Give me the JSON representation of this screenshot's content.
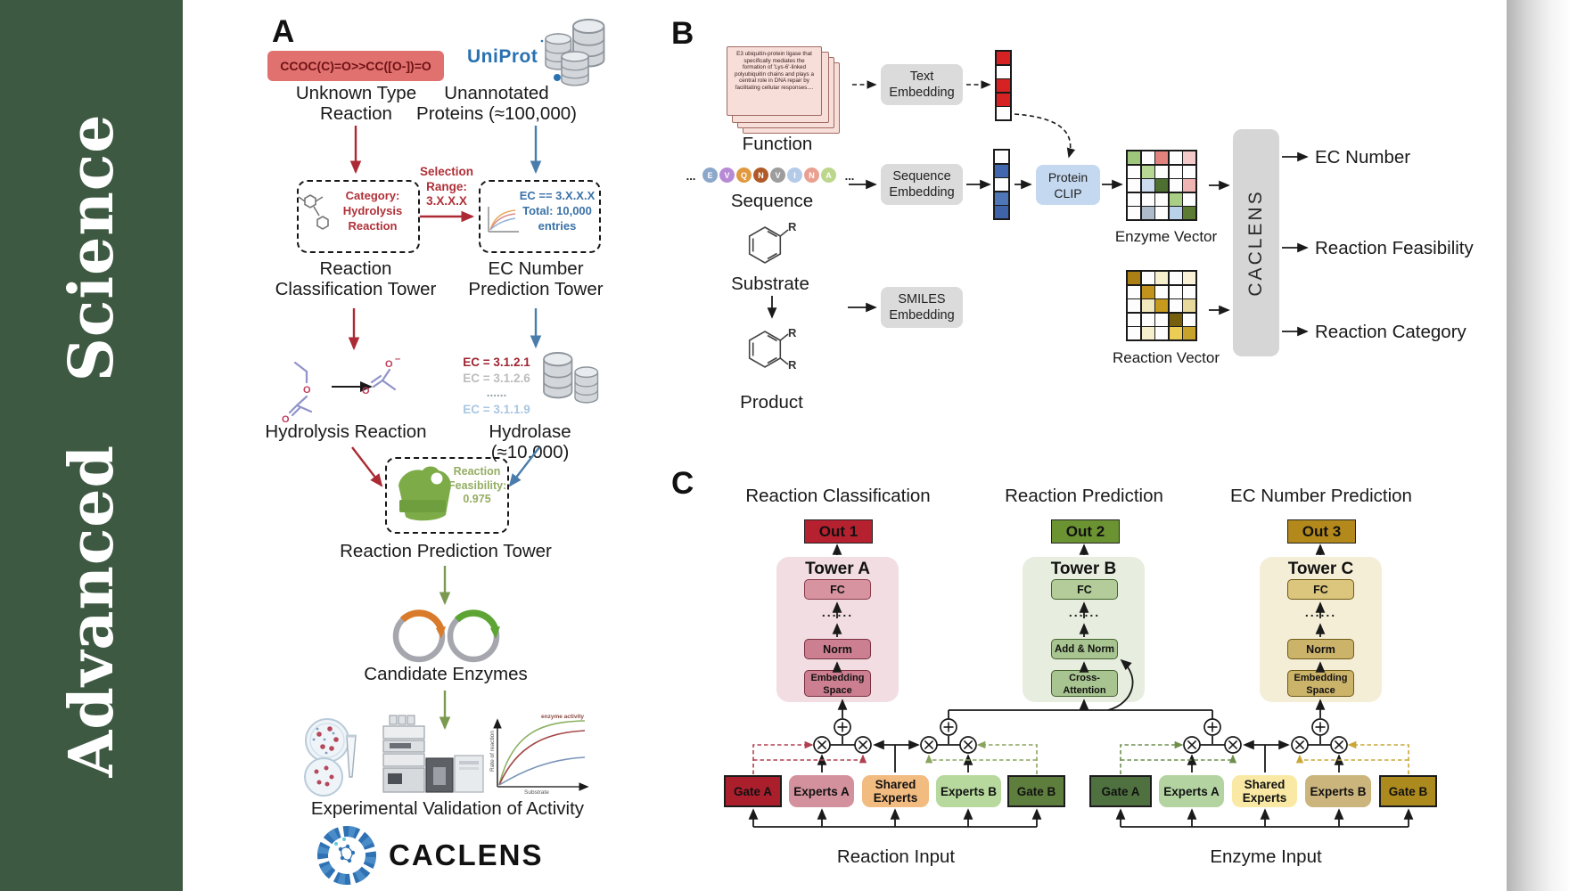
{
  "journal": {
    "name": "Advanced  Science"
  },
  "panelA": {
    "label": "A",
    "smiles": "CCOC(C)=O>>CC([O-])=O",
    "unknown_reaction": "Unknown Type\nReaction",
    "uniprot": "UniProt",
    "unannotated": "Unannotated\nProteins (≈100,000)",
    "selection": "Selection\nRange:\n3.X.X.X",
    "category_box": "Category:\nHydrolysis\nReaction",
    "ec_box": "EC == 3.X.X.X\nTotal: 10,000\nentries",
    "classification_tower": "Reaction\nClassification Tower",
    "ec_tower": "EC Number\nPrediction Tower",
    "hydrolysis": "Hydrolysis Reaction",
    "ec_list": [
      "EC = 3.1.2.1",
      "EC = 3.1.2.6",
      "......",
      "EC = 3.1.1.9"
    ],
    "hydrolase": "Hydrolase (≈10,000)",
    "enzyme_badge": "Enzyme",
    "feasibility": "Reaction\nFeasibility:\n0.975",
    "prediction_tower": "Reaction Prediction Tower",
    "candidates": "Candidate Enzymes",
    "activity_plot": {
      "ylabel": "Rate of reaction",
      "xlabel": "Substrate",
      "annotation": "enzyme activity"
    },
    "validation": "Experimental Validation of Activity",
    "brand": "CACLENS"
  },
  "panelB": {
    "label": "B",
    "function_text": "E3 ubiquitin-protein ligase that specifically mediates the formation of 'Lys-6'-linked polyubiquitin chains and plays a central role in DNA repair by facilitating cellular responses....",
    "function_label": "Function",
    "ellipsis": "...",
    "sequence": [
      {
        "t": "E",
        "c": "#8ba7cb"
      },
      {
        "t": "V",
        "c": "#b78ad6"
      },
      {
        "t": "Q",
        "c": "#e0993f"
      },
      {
        "t": "N",
        "c": "#b05a28"
      },
      {
        "t": "V",
        "c": "#9d9d9d"
      },
      {
        "t": "I",
        "c": "#b3cbe8"
      },
      {
        "t": "N",
        "c": "#e9a090"
      },
      {
        "t": "A",
        "c": "#bcd68b"
      }
    ],
    "sequence_label": "Sequence",
    "substituent": "R",
    "substrate_label": "Substrate",
    "product_label": "Product",
    "text_embedding": "Text\nEmbedding",
    "sequence_embedding": "Sequence\nEmbedding",
    "smiles_embedding": "SMILES\nEmbedding",
    "protein_clip": "Protein\nCLIP",
    "text_vector": [
      "#d62222",
      "#fdfdfd",
      "#d62222",
      "#d62222",
      "#fdfdfd"
    ],
    "sequence_vector": [
      "#fdfdfd",
      "#4168ae",
      "#fdfdfd",
      "#4f77b7",
      "#3f63a8"
    ],
    "enzyme_matrix": [
      "#9fc77c",
      "#fdfdfd",
      "#e2827f",
      "#fdfdfd",
      "#f4c9c9",
      "#fdfdfd",
      "#b7d795",
      "#fdfdfd",
      "#fdfdfd",
      "#fdfdfd",
      "#fdfdfd",
      "#ccdcf0",
      "#4d7031",
      "#fdfdfd",
      "#efb5b3",
      "#fdfdfd",
      "#fdfdfd",
      "#fdfdfd",
      "#a9cf85",
      "#fdfdfd",
      "#fdfdfd",
      "#adbbcb",
      "#fdfdfd",
      "#b9d2ea",
      "#5d7b33"
    ],
    "reaction_matrix": [
      "#ab7f14",
      "#fdfdfd",
      "#f6efce",
      "#fdfdfd",
      "#f9f2d8",
      "#fdfdfd",
      "#c2931c",
      "#fdfdfd",
      "#fdfdfd",
      "#fdfdfd",
      "#fdfdfd",
      "#f2e8bd",
      "#c59a1d",
      "#fdfdfd",
      "#e7d89b",
      "#fdfdfd",
      "#fdfdfd",
      "#fdfdfd",
      "#77600d",
      "#fdfdfd",
      "#fdfdfd",
      "#f6efce",
      "#fdfdfd",
      "#ebcc55",
      "#c7a32b"
    ],
    "enzyme_vector_label": "Enzyme Vector",
    "reaction_vector_label": "Reaction Vector",
    "model_name": "CACLENS",
    "outputs": [
      "EC Number",
      "Reaction Feasibility",
      "Reaction Category"
    ]
  },
  "panelC": {
    "label": "C",
    "headers": [
      "Reaction Classification",
      "Reaction Prediction",
      "EC Number Prediction"
    ],
    "outs": [
      "Out 1",
      "Out 2",
      "Out 3"
    ],
    "towers": [
      {
        "name": "Tower A",
        "fc": "FC",
        "dots": "......",
        "mid": "Norm",
        "bottom": "Embedding\nSpace"
      },
      {
        "name": "Tower B",
        "fc": "FC",
        "dots": "......",
        "mid": "Add & Norm",
        "bottom": "Cross-\nAttention"
      },
      {
        "name": "Tower C",
        "fc": "FC",
        "dots": "......",
        "mid": "Norm",
        "bottom": "Embedding\nSpace"
      }
    ],
    "groups": [
      {
        "gate_a": "Gate A",
        "experts_a": "Experts A",
        "shared": "Shared\nExperts",
        "experts_b": "Experts B",
        "gate_b": "Gate B",
        "input": "Reaction Input"
      },
      {
        "gate_a": "Gate A",
        "experts_a": "Experts A",
        "shared": "Shared\nExperts",
        "experts_b": "Experts B",
        "gate_b": "Gate B",
        "input": "Enzyme Input"
      }
    ]
  }
}
